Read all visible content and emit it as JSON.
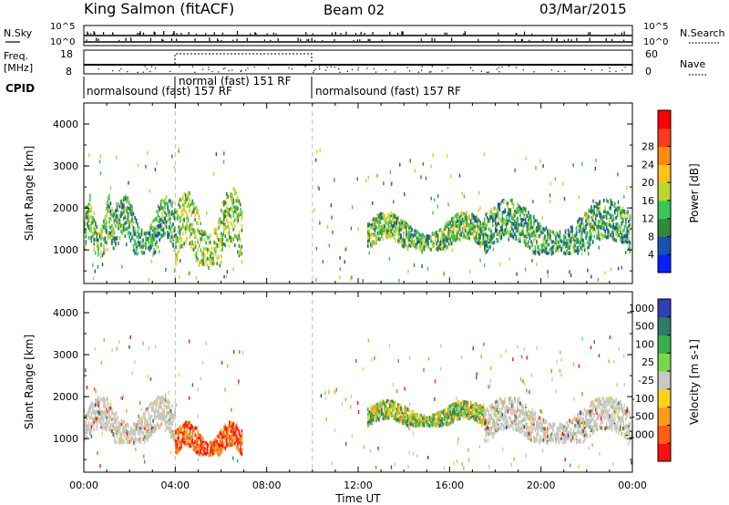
{
  "header": {
    "station": "King Salmon (fitACF)",
    "beam": "Beam 02",
    "date": "03/Mar/2015"
  },
  "status_panels": {
    "nsky_label": "N.Sky",
    "nsearch_label": "N.Search",
    "noise_ticks": [
      "10^5",
      "10^0"
    ],
    "freq_label_line1": "Freq.",
    "freq_label_line2": "[MHz]",
    "freq_ticks": [
      "18",
      "8"
    ],
    "nave_label": "Nave",
    "nave_ticks": [
      "60",
      "0"
    ],
    "cpid_label": "CPID",
    "cpid_segments": [
      {
        "label": "normalsound (fast) 157 RF",
        "start_h": 0,
        "end_h": 4.0
      },
      {
        "label": "normal (fast) 151 RF",
        "start_h": 4.0,
        "end_h": 10.0
      },
      {
        "label": "normalsound (fast) 157 RF",
        "start_h": 10.0,
        "end_h": 24.0
      }
    ]
  },
  "axes": {
    "xlabel": "Time UT",
    "ylabel": "Slant Range [km]",
    "xticks": [
      "00:00",
      "04:00",
      "08:00",
      "12:00",
      "16:00",
      "20:00",
      "00:00"
    ],
    "yticks": [
      "1000",
      "2000",
      "3000",
      "4000"
    ]
  },
  "colorbars": {
    "power": {
      "label": "Power [dB]",
      "ticks": [
        "4",
        "8",
        "12",
        "16",
        "20",
        "24",
        "28"
      ],
      "colors": [
        "#0a1fff",
        "#1a4fb4",
        "#2f8a3c",
        "#37c85a",
        "#b9d72f",
        "#ffc21a",
        "#ff8a12",
        "#ff3b1b",
        "#ff0000"
      ]
    },
    "velocity": {
      "label": "Velocity [m s-1]",
      "ticks": [
        "1000",
        "500",
        "100",
        "25",
        "-25",
        "-100",
        "-500",
        "-1000"
      ],
      "colors": [
        "#2f3fb4",
        "#2f7a6a",
        "#37b04a",
        "#7ad648",
        "#c8c8c0",
        "#ffd21a",
        "#ff9a18",
        "#ff5e14",
        "#ff1010"
      ]
    }
  },
  "chart_data": [
    {
      "type": "heatmap",
      "title": "Power",
      "ylabel": "Slant Range [km]",
      "xlabel": "Time UT",
      "xlim": [
        0,
        24
      ],
      "ylim": [
        200,
        4500
      ],
      "colorbar_label": "Power [dB]",
      "colorbar_range": [
        0,
        32
      ],
      "echo_regions": [
        {
          "t_start": 0.0,
          "t_end": 1.3,
          "range_low": 850,
          "range_high": 2300,
          "typical_db": 12
        },
        {
          "t_start": 1.3,
          "t_end": 4.0,
          "range_low": 900,
          "range_high": 2300,
          "typical_db": 10
        },
        {
          "t_start": 4.0,
          "t_end": 6.9,
          "range_low": 600,
          "range_high": 2500,
          "typical_db": 14
        },
        {
          "t_start": 12.4,
          "t_end": 17.5,
          "range_low": 1000,
          "range_high": 1900,
          "typical_db": 12
        },
        {
          "t_start": 17.5,
          "t_end": 23.9,
          "range_low": 900,
          "range_high": 2200,
          "typical_db": 10
        }
      ]
    },
    {
      "type": "heatmap",
      "title": "Velocity",
      "ylabel": "Slant Range [km]",
      "xlabel": "Time UT",
      "xlim": [
        0,
        24
      ],
      "ylim": [
        200,
        4500
      ],
      "colorbar_label": "Velocity [m s-1]",
      "colorbar_range": [
        -1000,
        1000
      ],
      "echo_regions": [
        {
          "t_start": 0.0,
          "t_end": 4.0,
          "range_low": 900,
          "range_high": 2000,
          "typical_ms": 0
        },
        {
          "t_start": 4.0,
          "t_end": 6.9,
          "range_low": 600,
          "range_high": 1400,
          "typical_ms": -300
        },
        {
          "t_start": 12.4,
          "t_end": 17.5,
          "range_low": 1300,
          "range_high": 1900,
          "typical_ms": 50
        },
        {
          "t_start": 17.5,
          "t_end": 23.9,
          "range_low": 900,
          "range_high": 2000,
          "typical_ms": 0
        }
      ]
    }
  ]
}
